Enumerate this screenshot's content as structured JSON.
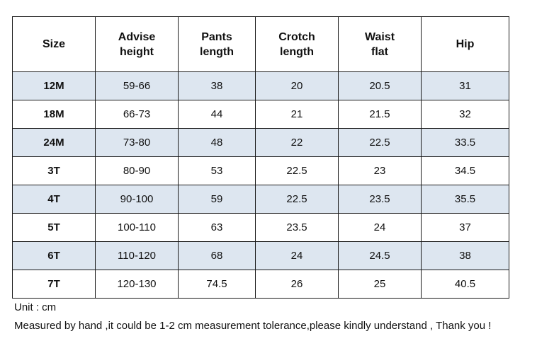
{
  "table": {
    "headers": [
      "Size",
      "Advise\nheight",
      "Pants\nlength",
      "Crotch\nlength",
      "Waist\nflat",
      "Hip"
    ],
    "rows": [
      [
        "12M",
        "59-66",
        "38",
        "20",
        "20.5",
        "31"
      ],
      [
        "18M",
        "66-73",
        "44",
        "21",
        "21.5",
        "32"
      ],
      [
        "24M",
        "73-80",
        "48",
        "22",
        "22.5",
        "33.5"
      ],
      [
        "3T",
        "80-90",
        "53",
        "22.5",
        "23",
        "34.5"
      ],
      [
        "4T",
        "90-100",
        "59",
        "22.5",
        "23.5",
        "35.5"
      ],
      [
        "5T",
        "100-110",
        "63",
        "23.5",
        "24",
        "37"
      ],
      [
        "6T",
        "110-120",
        "68",
        "24",
        "24.5",
        "38"
      ],
      [
        "7T",
        "120-130",
        "74.5",
        "26",
        "25",
        "40.5"
      ]
    ]
  },
  "notes": {
    "unit": "Unit : cm",
    "tolerance": "Measured by hand ,it could be 1-2 cm measurement tolerance,please kindly understand , Thank you !"
  },
  "colors": {
    "shaded_row": "#dde6f0",
    "border": "#1a1a1a"
  }
}
